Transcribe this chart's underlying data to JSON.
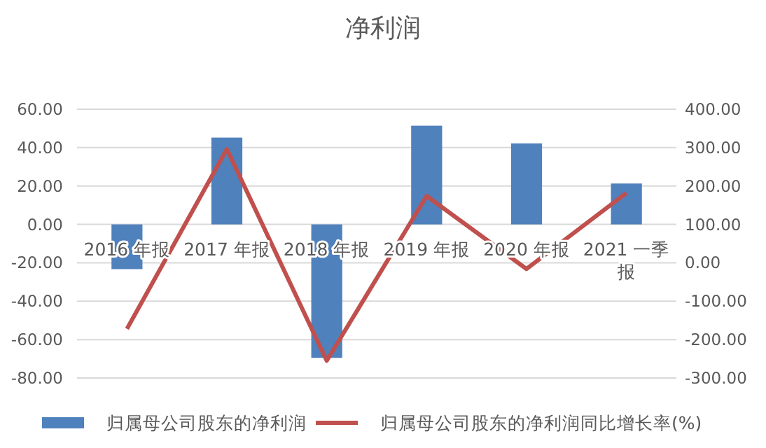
{
  "chart_data": {
    "type": "bar",
    "title": "净利润",
    "categories": [
      "2016 年报",
      "2017 年报",
      "2018 年报",
      "2019 年报",
      "2020 年报",
      "2021 一季报"
    ],
    "series": [
      {
        "name": "归属母公司股东的净利润",
        "color": "#4f81bd",
        "values": [
          -23.3,
          45.2,
          -69.5,
          51.4,
          42.2,
          21.3
        ]
      },
      {
        "name": "归属母公司股东的净利润同比增长率(%)",
        "type": "line",
        "axis": "y2",
        "color": "#c0504d",
        "values": [
          -172,
          296,
          -255,
          174,
          -16,
          182
        ]
      }
    ],
    "ylim": [
      -80,
      60
    ],
    "yticks": [
      {
        "value": -80,
        "label": "-80.00"
      },
      {
        "value": -60,
        "label": "-60.00"
      },
      {
        "value": -40,
        "label": "-40.00"
      },
      {
        "value": -20,
        "label": "-20.00"
      },
      {
        "value": 0,
        "label": "0.00"
      },
      {
        "value": 20,
        "label": "20.00"
      },
      {
        "value": 40,
        "label": "40.00"
      },
      {
        "value": 60,
        "label": "60.00"
      }
    ],
    "y2lim": [
      -300,
      400
    ],
    "y2ticks": [
      {
        "value": -300,
        "label": "-300.00"
      },
      {
        "value": -200,
        "label": "-200.00"
      },
      {
        "value": -100,
        "label": "-100.00"
      },
      {
        "value": 0,
        "label": "0.00"
      },
      {
        "value": 100,
        "label": "100.00"
      },
      {
        "value": 200,
        "label": "200.00"
      },
      {
        "value": 300,
        "label": "300.00"
      },
      {
        "value": 400,
        "label": "400.00"
      }
    ],
    "grid": "y",
    "legend": "bottom",
    "marker": "none",
    "line_style": "solid"
  }
}
